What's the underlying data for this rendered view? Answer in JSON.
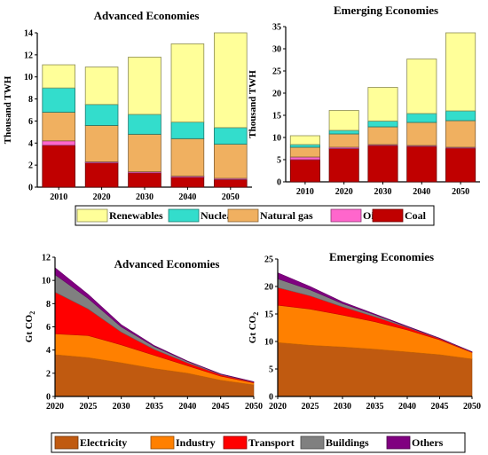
{
  "chart_data": [
    {
      "type": "bar",
      "stacked": true,
      "title": "Advanced Economies",
      "ylabel": "Thousand TWH",
      "categories": [
        "2010",
        "2020",
        "2030",
        "2040",
        "2050"
      ],
      "ylim": [
        0,
        14
      ],
      "yticks": [
        0,
        2,
        4,
        6,
        8,
        10,
        12,
        14
      ],
      "series": [
        {
          "name": "Coal",
          "color": "#c00000",
          "values": [
            3.8,
            2.2,
            1.3,
            0.9,
            0.7
          ]
        },
        {
          "name": "Oil",
          "color": "#ff66cc",
          "values": [
            0.4,
            0.1,
            0.1,
            0.1,
            0.1
          ]
        },
        {
          "name": "Natural gas",
          "color": "#f0b060",
          "values": [
            2.6,
            3.3,
            3.4,
            3.4,
            3.1
          ]
        },
        {
          "name": "Nuclear",
          "color": "#33ddcc",
          "values": [
            2.2,
            1.9,
            1.8,
            1.5,
            1.5
          ]
        },
        {
          "name": "Renewables",
          "color": "#ffff99",
          "values": [
            2.1,
            3.4,
            5.2,
            7.1,
            8.6
          ]
        }
      ]
    },
    {
      "type": "bar",
      "stacked": true,
      "title": "Emerging Economies",
      "ylabel": "Thousand TWH",
      "categories": [
        "2010",
        "2020",
        "2030",
        "2040",
        "2050"
      ],
      "ylim": [
        0,
        35
      ],
      "yticks": [
        0,
        5,
        10,
        15,
        20,
        25,
        30,
        35
      ],
      "series": [
        {
          "name": "Coal",
          "color": "#c00000",
          "values": [
            5.0,
            7.5,
            8.2,
            8.0,
            7.6
          ]
        },
        {
          "name": "Oil",
          "color": "#ff66cc",
          "values": [
            0.6,
            0.3,
            0.2,
            0.2,
            0.2
          ]
        },
        {
          "name": "Natural gas",
          "color": "#f0b060",
          "values": [
            2.2,
            3.0,
            4.0,
            5.2,
            6.0
          ]
        },
        {
          "name": "Nuclear",
          "color": "#33ddcc",
          "values": [
            0.6,
            0.8,
            1.3,
            2.0,
            2.2
          ]
        },
        {
          "name": "Renewables",
          "color": "#ffff99",
          "values": [
            2.0,
            4.5,
            7.6,
            12.3,
            17.6
          ]
        }
      ]
    },
    {
      "type": "area",
      "stacked": true,
      "title": "Advanced Economies",
      "ylabel": "Gt CO2",
      "x": [
        2020,
        2025,
        2030,
        2035,
        2040,
        2045,
        2050
      ],
      "xlim": [
        2020,
        2050
      ],
      "ylim": [
        0,
        12
      ],
      "yticks": [
        0,
        2,
        4,
        6,
        8,
        10,
        12
      ],
      "series": [
        {
          "name": "Electricity",
          "color": "#c05a10",
          "values": [
            3.6,
            3.35,
            2.9,
            2.4,
            2.0,
            1.4,
            1.0
          ]
        },
        {
          "name": "Industry",
          "color": "#ff8000",
          "values": [
            1.8,
            1.9,
            1.55,
            1.15,
            0.65,
            0.35,
            0.18
          ]
        },
        {
          "name": "Transport",
          "color": "#ff0000",
          "values": [
            3.6,
            2.3,
            1.1,
            0.5,
            0.25,
            0.12,
            0.05
          ]
        },
        {
          "name": "Buildings",
          "color": "#808080",
          "values": [
            1.5,
            0.9,
            0.45,
            0.25,
            0.12,
            0.05,
            0.02
          ]
        },
        {
          "name": "Others",
          "color": "#800080",
          "values": [
            0.6,
            0.35,
            0.18,
            0.08,
            0.04,
            0.03,
            0.02
          ]
        }
      ]
    },
    {
      "type": "area",
      "stacked": true,
      "title": "Emerging Economies",
      "ylabel": "Gt CO2",
      "x": [
        2020,
        2025,
        2030,
        2035,
        2040,
        2045,
        2050
      ],
      "xlim": [
        2020,
        2050
      ],
      "ylim": [
        0,
        25
      ],
      "yticks": [
        0,
        5,
        10,
        15,
        20,
        25
      ],
      "series": [
        {
          "name": "Electricity",
          "color": "#c05a10",
          "values": [
            9.8,
            9.3,
            9.0,
            8.6,
            8.1,
            7.6,
            6.8
          ]
        },
        {
          "name": "Industry",
          "color": "#ff8000",
          "values": [
            6.8,
            6.6,
            5.8,
            5.0,
            4.0,
            2.7,
            1.2
          ]
        },
        {
          "name": "Transport",
          "color": "#ff0000",
          "values": [
            3.2,
            2.4,
            1.5,
            0.9,
            0.45,
            0.2,
            0.08
          ]
        },
        {
          "name": "Buildings",
          "color": "#808080",
          "values": [
            1.6,
            1.1,
            0.6,
            0.35,
            0.15,
            0.07,
            0.03
          ]
        },
        {
          "name": "Others",
          "color": "#800080",
          "values": [
            1.1,
            0.6,
            0.3,
            0.15,
            0.08,
            0.03,
            0.02
          ]
        }
      ]
    }
  ],
  "legends": {
    "top": [
      {
        "label": "Renewables",
        "color": "#ffff99"
      },
      {
        "label": "Nuclear",
        "color": "#33ddcc"
      },
      {
        "label": "Natural gas",
        "color": "#f0b060"
      },
      {
        "label": "Oil",
        "color": "#ff66cc"
      },
      {
        "label": "Coal",
        "color": "#c00000"
      }
    ],
    "bottom": [
      {
        "label": "Electricity",
        "color": "#c05a10"
      },
      {
        "label": "Industry",
        "color": "#ff8000"
      },
      {
        "label": "Transport",
        "color": "#ff0000"
      },
      {
        "label": "Buildings",
        "color": "#808080"
      },
      {
        "label": "Others",
        "color": "#800080"
      }
    ]
  }
}
